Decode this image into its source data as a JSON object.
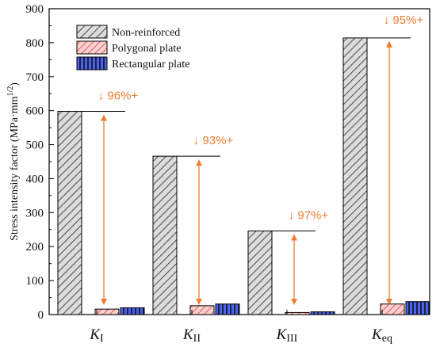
{
  "chart_data": {
    "type": "bar",
    "categories": [
      {
        "main": "K",
        "sub": "I"
      },
      {
        "main": "K",
        "sub": "II"
      },
      {
        "main": "K",
        "sub": "III"
      },
      {
        "main": "K",
        "sub": "eq"
      }
    ],
    "series": [
      {
        "name": "Non-reinforced",
        "values": [
          598,
          466,
          246,
          814
        ],
        "fill": "#c8c8c8",
        "pattern": "diagonal-gray"
      },
      {
        "name": "Polygonal plate",
        "values": [
          16,
          26,
          6,
          31
        ],
        "fill": "#f4a6a6",
        "pattern": "diagonal-red"
      },
      {
        "name": "Rectangular plate",
        "values": [
          20,
          31,
          8,
          38
        ],
        "fill": "#3a52e8",
        "pattern": "vertical-blue"
      }
    ],
    "annotations": [
      "↓ 96%+",
      "↓ 93%+",
      "↓ 97%+",
      "↓ 95%+"
    ],
    "ylabel": "Stress intensity factor (MPa·mm",
    "ylabel_sup": "1/2",
    "ylabel_end": ")",
    "yticks": [
      0,
      100,
      200,
      300,
      400,
      500,
      600,
      700,
      800,
      900
    ],
    "ylim": [
      0,
      900
    ],
    "legend_position": "top-left",
    "grid": false,
    "annotation_color": "#ED7D31"
  }
}
